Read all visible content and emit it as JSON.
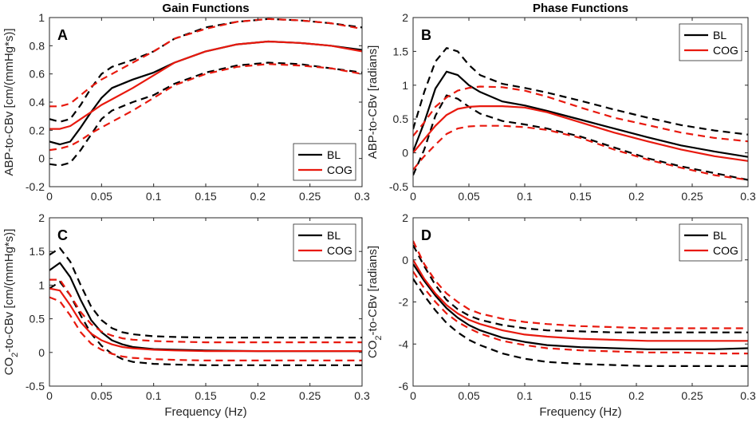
{
  "figure": {
    "colors": {
      "bl": "#000000",
      "cog": "#e8190e",
      "axis": "#262626"
    }
  },
  "chart_data": [
    {
      "type": "line",
      "panel_label": "A",
      "title": "Gain Functions",
      "xlabel": "",
      "ylabel": "ABP-to-CBv [cm/(mmHg*s)]",
      "xlim": [
        0,
        0.3
      ],
      "ylim": [
        -0.2,
        1
      ],
      "xticks": [
        0,
        0.05,
        0.1,
        0.15,
        0.2,
        0.25,
        0.3
      ],
      "xtick_labels": [
        "0",
        "0.05",
        "0.1",
        "0.15",
        "0.2",
        "0.25",
        "0.3"
      ],
      "yticks": [
        -0.2,
        0,
        0.2,
        0.4,
        0.6,
        0.8,
        1
      ],
      "ytick_labels": [
        "-0.2",
        "0",
        "0.2",
        "0.4",
        "0.6",
        "0.8",
        "1"
      ],
      "legend": {
        "position": "bottom-right",
        "entries": [
          "BL",
          "COG"
        ]
      },
      "x": [
        0,
        0.01,
        0.02,
        0.03,
        0.04,
        0.05,
        0.06,
        0.08,
        0.1,
        0.12,
        0.15,
        0.18,
        0.21,
        0.24,
        0.27,
        0.3
      ],
      "series": [
        {
          "name": "BL",
          "style": "solid",
          "group": "BL",
          "values": [
            0.12,
            0.1,
            0.12,
            0.22,
            0.33,
            0.43,
            0.5,
            0.56,
            0.61,
            0.68,
            0.76,
            0.81,
            0.83,
            0.82,
            0.8,
            0.77
          ]
        },
        {
          "name": "BL upper",
          "style": "dashed",
          "group": "BL",
          "values": [
            0.28,
            0.26,
            0.28,
            0.38,
            0.5,
            0.6,
            0.65,
            0.7,
            0.76,
            0.85,
            0.93,
            0.97,
            0.99,
            0.98,
            0.96,
            0.93
          ]
        },
        {
          "name": "BL lower",
          "style": "dashed",
          "group": "BL",
          "values": [
            -0.04,
            -0.05,
            -0.03,
            0.06,
            0.17,
            0.28,
            0.34,
            0.4,
            0.45,
            0.53,
            0.61,
            0.66,
            0.68,
            0.67,
            0.64,
            0.61
          ]
        },
        {
          "name": "COG",
          "style": "solid",
          "group": "COG",
          "values": [
            0.21,
            0.21,
            0.23,
            0.28,
            0.33,
            0.38,
            0.42,
            0.5,
            0.59,
            0.68,
            0.76,
            0.81,
            0.83,
            0.82,
            0.8,
            0.76
          ]
        },
        {
          "name": "COG upper",
          "style": "dashed",
          "group": "COG",
          "values": [
            0.37,
            0.37,
            0.39,
            0.45,
            0.51,
            0.56,
            0.6,
            0.68,
            0.76,
            0.85,
            0.92,
            0.97,
            0.99,
            0.98,
            0.96,
            0.92
          ]
        },
        {
          "name": "COG lower",
          "style": "dashed",
          "group": "COG",
          "values": [
            0.06,
            0.07,
            0.09,
            0.13,
            0.18,
            0.22,
            0.26,
            0.34,
            0.43,
            0.52,
            0.6,
            0.65,
            0.67,
            0.66,
            0.64,
            0.6
          ]
        }
      ]
    },
    {
      "type": "line",
      "panel_label": "B",
      "title": "Phase Functions",
      "xlabel": "",
      "ylabel": "ABP-to-CBv [radians]",
      "xlim": [
        0,
        0.3
      ],
      "ylim": [
        -0.5,
        2
      ],
      "xticks": [
        0,
        0.05,
        0.1,
        0.15,
        0.2,
        0.25,
        0.3
      ],
      "xtick_labels": [
        "0",
        "0.05",
        "0.1",
        "0.15",
        "0.2",
        "0.25",
        "0.3"
      ],
      "yticks": [
        -0.5,
        0,
        0.5,
        1,
        1.5,
        2
      ],
      "ytick_labels": [
        "-0.5",
        "0",
        "0.5",
        "1",
        "1.5",
        "2"
      ],
      "legend": {
        "position": "top-right",
        "entries": [
          "BL",
          "COG"
        ]
      },
      "x": [
        0,
        0.01,
        0.02,
        0.03,
        0.04,
        0.05,
        0.06,
        0.08,
        0.1,
        0.12,
        0.15,
        0.18,
        0.21,
        0.24,
        0.27,
        0.3
      ],
      "series": [
        {
          "name": "BL",
          "style": "solid",
          "group": "BL",
          "values": [
            0.02,
            0.45,
            0.95,
            1.2,
            1.15,
            1.0,
            0.9,
            0.76,
            0.7,
            0.62,
            0.49,
            0.36,
            0.23,
            0.11,
            0.02,
            -0.06
          ]
        },
        {
          "name": "BL upper",
          "style": "dashed",
          "group": "BL",
          "values": [
            0.35,
            0.9,
            1.35,
            1.55,
            1.5,
            1.3,
            1.15,
            1.02,
            0.96,
            0.89,
            0.77,
            0.64,
            0.52,
            0.41,
            0.33,
            0.27
          ]
        },
        {
          "name": "BL lower",
          "style": "dashed",
          "group": "BL",
          "values": [
            -0.33,
            0.05,
            0.55,
            0.85,
            0.8,
            0.68,
            0.58,
            0.47,
            0.42,
            0.36,
            0.24,
            0.08,
            -0.08,
            -0.2,
            -0.3,
            -0.4
          ]
        },
        {
          "name": "COG",
          "style": "solid",
          "group": "COG",
          "values": [
            0.0,
            0.2,
            0.4,
            0.56,
            0.65,
            0.68,
            0.69,
            0.69,
            0.67,
            0.6,
            0.45,
            0.3,
            0.17,
            0.05,
            -0.05,
            -0.12
          ]
        },
        {
          "name": "COG upper",
          "style": "dashed",
          "group": "COG",
          "values": [
            0.25,
            0.45,
            0.68,
            0.82,
            0.92,
            0.96,
            0.98,
            0.97,
            0.92,
            0.83,
            0.67,
            0.52,
            0.41,
            0.3,
            0.22,
            0.17
          ]
        },
        {
          "name": "COG lower",
          "style": "dashed",
          "group": "COG",
          "values": [
            -0.25,
            -0.05,
            0.12,
            0.28,
            0.36,
            0.39,
            0.4,
            0.4,
            0.38,
            0.34,
            0.22,
            0.05,
            -0.1,
            -0.22,
            -0.33,
            -0.4
          ]
        }
      ]
    },
    {
      "type": "line",
      "panel_label": "C",
      "title": "",
      "xlabel": "Frequency (Hz)",
      "ylabel": "CO2-to-CBv [cm/(mmHg*s)]",
      "ylabel_parts": {
        "pre": "CO",
        "sub": "2",
        "post": "-to-CBv [cm/(mmHg*s)]"
      },
      "xlim": [
        0,
        0.3
      ],
      "ylim": [
        -0.5,
        2
      ],
      "xticks": [
        0,
        0.05,
        0.1,
        0.15,
        0.2,
        0.25,
        0.3
      ],
      "xtick_labels": [
        "0",
        "0.05",
        "0.1",
        "0.15",
        "0.2",
        "0.25",
        "0.3"
      ],
      "yticks": [
        -0.5,
        0,
        0.5,
        1,
        1.5,
        2
      ],
      "ytick_labels": [
        "-0.5",
        "0",
        "0.5",
        "1",
        "1.5",
        "2"
      ],
      "legend": {
        "position": "top-right",
        "entries": [
          "BL",
          "COG"
        ]
      },
      "x": [
        0,
        0.01,
        0.02,
        0.03,
        0.04,
        0.05,
        0.06,
        0.07,
        0.08,
        0.1,
        0.12,
        0.15,
        0.2,
        0.25,
        0.3
      ],
      "series": [
        {
          "name": "BL",
          "style": "solid",
          "group": "BL",
          "values": [
            1.22,
            1.33,
            1.12,
            0.78,
            0.48,
            0.3,
            0.18,
            0.12,
            0.08,
            0.05,
            0.04,
            0.03,
            0.02,
            0.02,
            0.02
          ]
        },
        {
          "name": "BL upper",
          "style": "dashed",
          "group": "BL",
          "values": [
            1.45,
            1.55,
            1.35,
            1.0,
            0.68,
            0.48,
            0.36,
            0.3,
            0.27,
            0.24,
            0.23,
            0.22,
            0.22,
            0.22,
            0.22
          ]
        },
        {
          "name": "BL lower",
          "style": "dashed",
          "group": "BL",
          "values": [
            0.95,
            1.05,
            0.85,
            0.55,
            0.28,
            0.1,
            -0.02,
            -0.1,
            -0.14,
            -0.17,
            -0.18,
            -0.19,
            -0.19,
            -0.19,
            -0.19
          ]
        },
        {
          "name": "COG",
          "style": "solid",
          "group": "COG",
          "values": [
            0.95,
            0.92,
            0.7,
            0.45,
            0.28,
            0.18,
            0.12,
            0.08,
            0.06,
            0.04,
            0.03,
            0.02,
            0.02,
            0.02,
            0.02
          ]
        },
        {
          "name": "COG upper",
          "style": "dashed",
          "group": "COG",
          "values": [
            1.08,
            1.08,
            0.85,
            0.6,
            0.42,
            0.31,
            0.25,
            0.21,
            0.19,
            0.17,
            0.16,
            0.15,
            0.15,
            0.15,
            0.15
          ]
        },
        {
          "name": "COG lower",
          "style": "dashed",
          "group": "COG",
          "values": [
            0.82,
            0.76,
            0.55,
            0.3,
            0.13,
            0.04,
            -0.02,
            -0.06,
            -0.08,
            -0.1,
            -0.11,
            -0.12,
            -0.12,
            -0.12,
            -0.12
          ]
        }
      ]
    },
    {
      "type": "line",
      "panel_label": "D",
      "title": "",
      "xlabel": "Frequency (Hz)",
      "ylabel": "CO2-to-CBv [radians]",
      "ylabel_parts": {
        "pre": "CO",
        "sub": "2",
        "post": "-to-CBv [radians]"
      },
      "xlim": [
        0,
        0.3
      ],
      "ylim": [
        -6,
        2
      ],
      "xticks": [
        0,
        0.05,
        0.1,
        0.15,
        0.2,
        0.25,
        0.3
      ],
      "xtick_labels": [
        "0",
        "0.05",
        "0.1",
        "0.15",
        "0.2",
        "0.25",
        "0.3"
      ],
      "yticks": [
        -6,
        -4,
        -2,
        0,
        2
      ],
      "ytick_labels": [
        "-6",
        "-4",
        "-2",
        "0",
        "2"
      ],
      "legend": {
        "position": "top-right",
        "entries": [
          "BL",
          "COG"
        ]
      },
      "x": [
        0,
        0.01,
        0.02,
        0.03,
        0.04,
        0.05,
        0.06,
        0.08,
        0.1,
        0.12,
        0.15,
        0.18,
        0.21,
        0.24,
        0.27,
        0.3
      ],
      "series": [
        {
          "name": "BL",
          "style": "solid",
          "group": "BL",
          "values": [
            -0.2,
            -1.0,
            -1.7,
            -2.3,
            -2.75,
            -3.1,
            -3.35,
            -3.7,
            -3.9,
            -4.05,
            -4.15,
            -4.2,
            -4.25,
            -4.25,
            -4.25,
            -4.2
          ]
        },
        {
          "name": "BL upper",
          "style": "dashed",
          "group": "BL",
          "values": [
            0.7,
            -0.3,
            -1.2,
            -1.9,
            -2.35,
            -2.65,
            -2.85,
            -3.1,
            -3.25,
            -3.35,
            -3.4,
            -3.45,
            -3.45,
            -3.45,
            -3.45,
            -3.45
          ]
        },
        {
          "name": "BL lower",
          "style": "dashed",
          "group": "BL",
          "values": [
            -0.9,
            -1.7,
            -2.4,
            -3.0,
            -3.45,
            -3.8,
            -4.05,
            -4.45,
            -4.7,
            -4.85,
            -4.95,
            -5.0,
            -5.05,
            -5.05,
            -5.05,
            -5.05
          ]
        },
        {
          "name": "COG",
          "style": "solid",
          "group": "COG",
          "values": [
            0.0,
            -0.9,
            -1.6,
            -2.15,
            -2.55,
            -2.85,
            -3.05,
            -3.35,
            -3.55,
            -3.65,
            -3.75,
            -3.8,
            -3.85,
            -3.85,
            -3.85,
            -3.85
          ]
        },
        {
          "name": "COG upper",
          "style": "dashed",
          "group": "COG",
          "values": [
            0.9,
            -0.2,
            -1.0,
            -1.6,
            -2.0,
            -2.35,
            -2.55,
            -2.8,
            -2.95,
            -3.05,
            -3.15,
            -3.2,
            -3.25,
            -3.25,
            -3.25,
            -3.25
          ]
        },
        {
          "name": "COG lower",
          "style": "dashed",
          "group": "COG",
          "values": [
            -0.55,
            -1.35,
            -2.0,
            -2.55,
            -2.95,
            -3.25,
            -3.5,
            -3.85,
            -4.05,
            -4.2,
            -4.3,
            -4.35,
            -4.4,
            -4.4,
            -4.45,
            -4.45
          ]
        }
      ]
    }
  ]
}
